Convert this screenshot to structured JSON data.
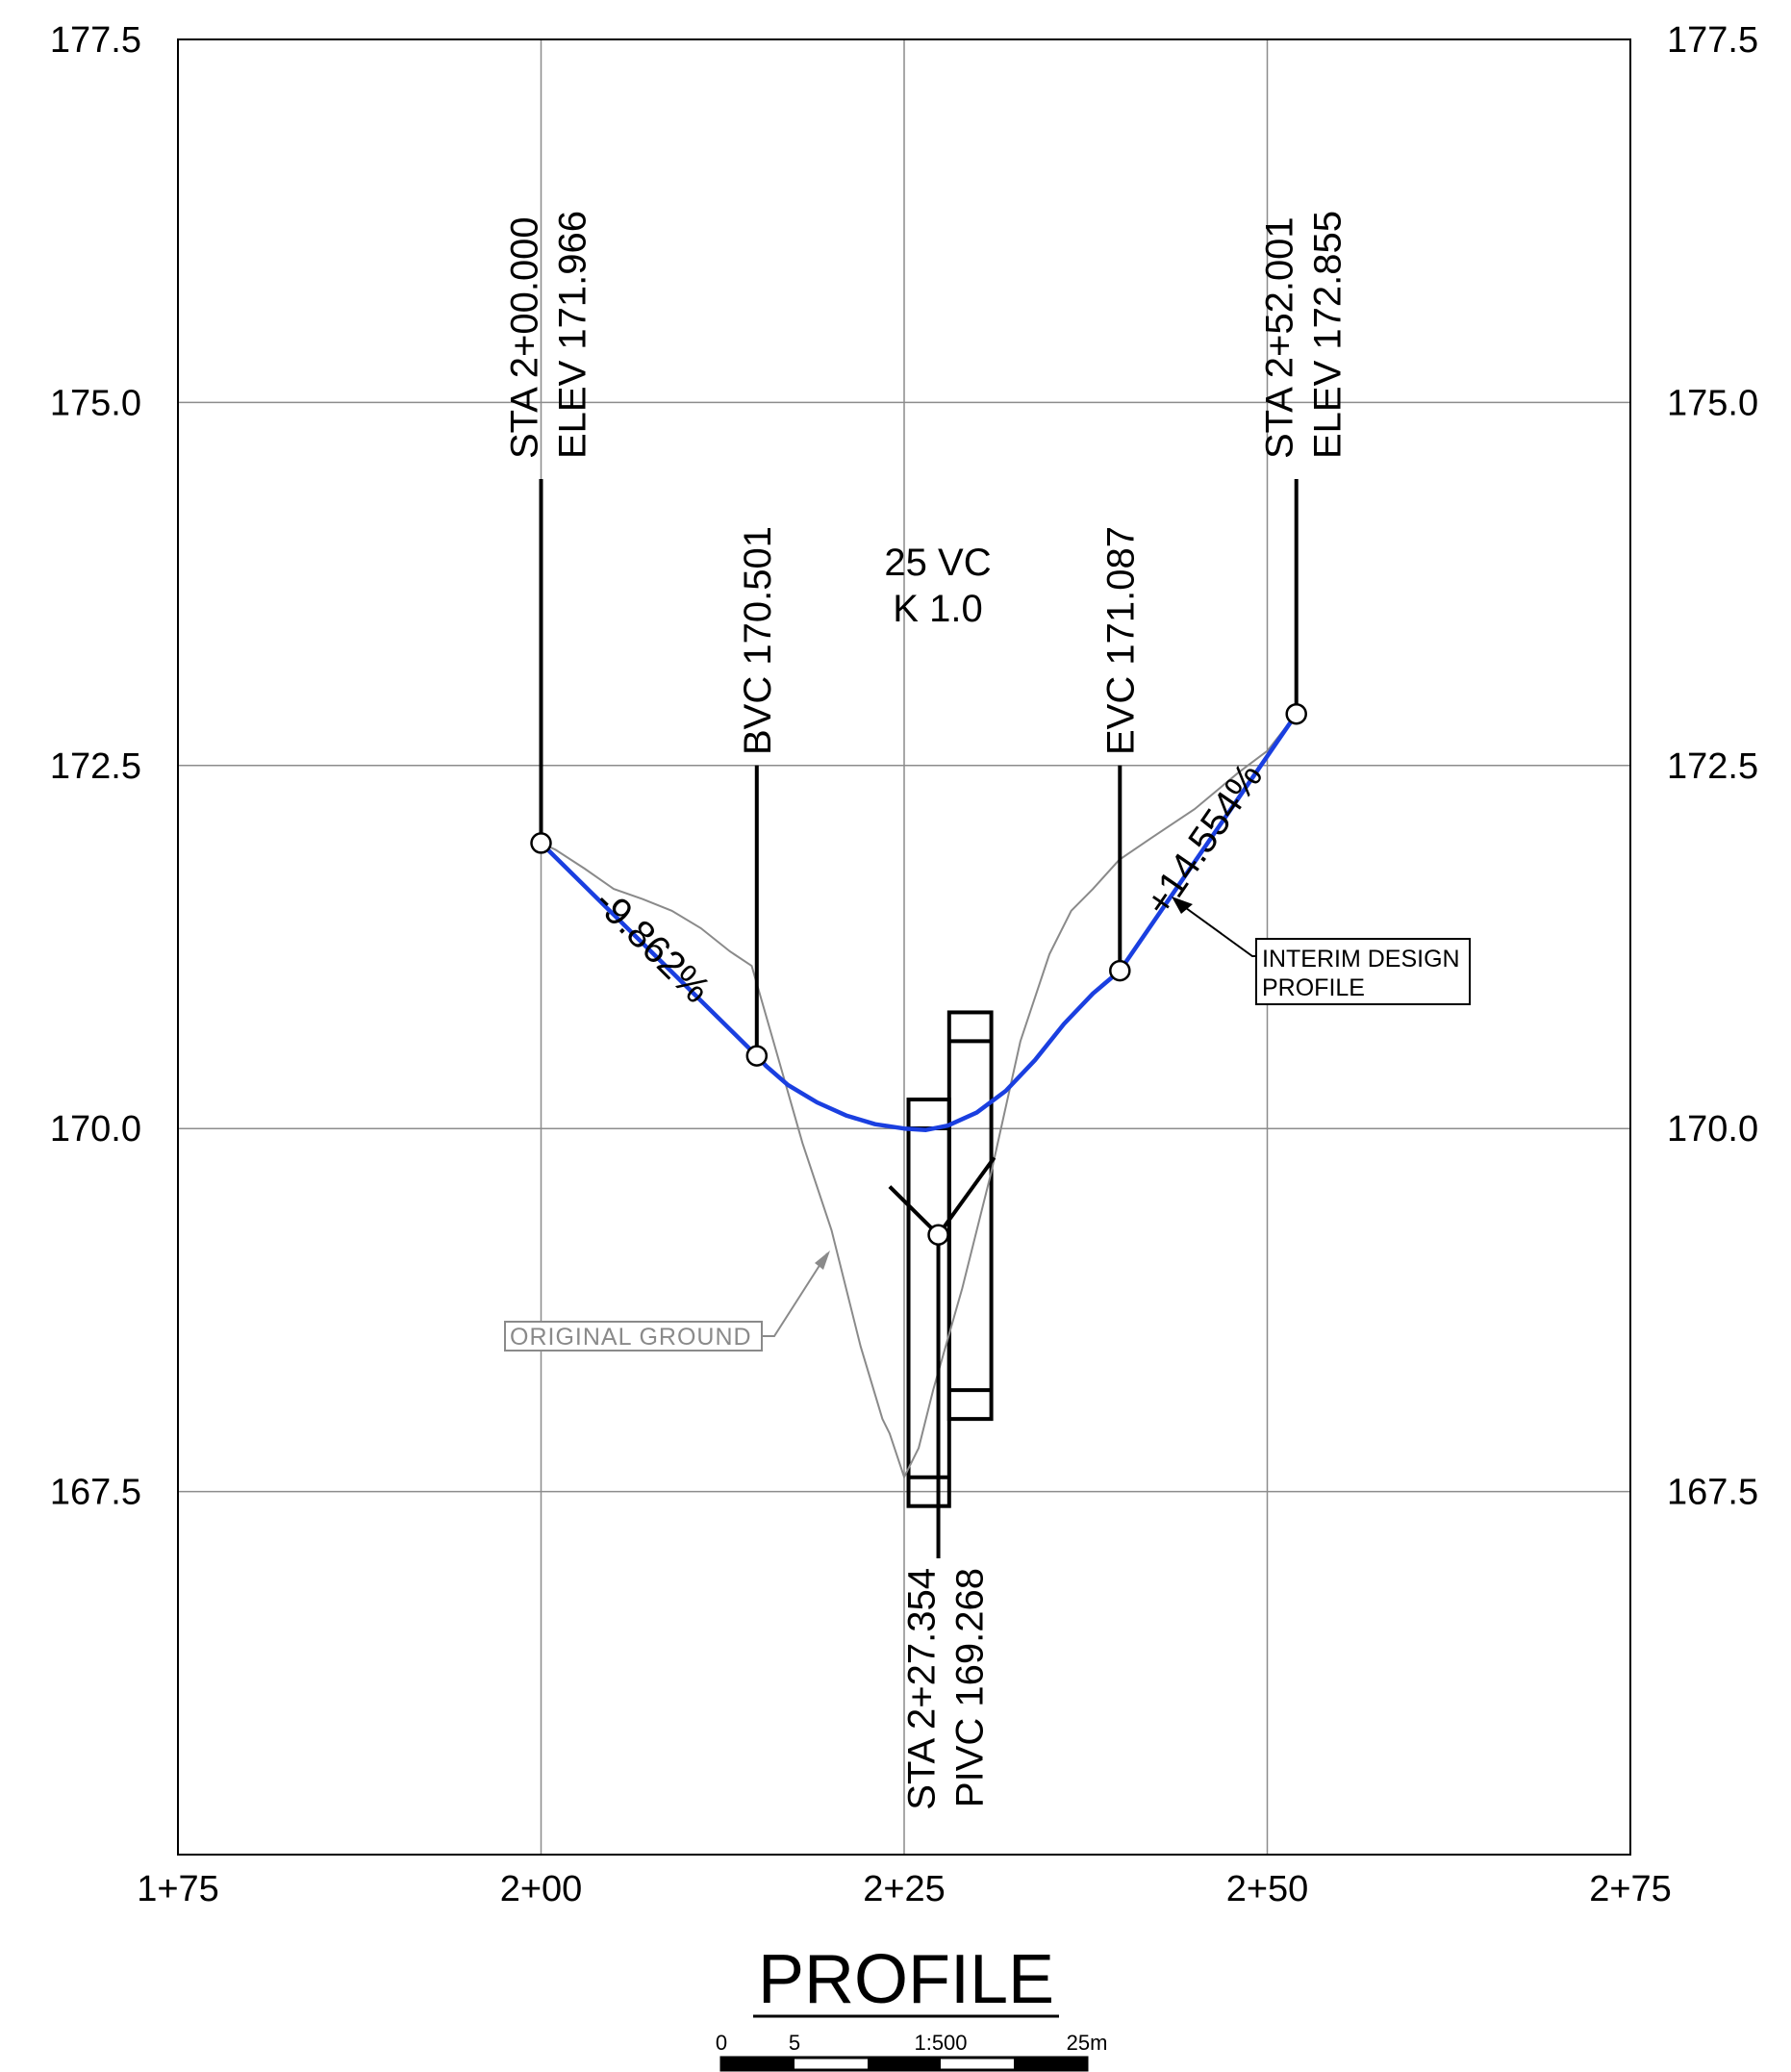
{
  "profile": {
    "title": "PROFILE",
    "x_tick_labels": [
      "1+75",
      "2+00",
      "2+25",
      "2+50",
      "2+75"
    ],
    "y_tick_labels": [
      "177.5",
      "175.0",
      "172.5",
      "170.0",
      "167.5"
    ],
    "pvi_start": {
      "sta": "STA 2+00.000",
      "elev": "ELEV 171.966"
    },
    "pvi_end": {
      "sta": "STA 2+52.001",
      "elev": "ELEV 172.855"
    },
    "bvc": "BVC 170.501",
    "evc": "EVC 171.087",
    "curve": {
      "vc": "25 VC",
      "k": "K 1.0"
    },
    "pivc": {
      "sta": "STA 2+27.354",
      "elev": "PIVC 169.268"
    },
    "grade_in": "-9.862%",
    "grade_out": "+14.554%",
    "design_label": [
      "INTERIM DESIGN",
      "PROFILE"
    ],
    "ground_label": "ORIGINAL  GROUND",
    "scale_bar": {
      "zero": "0",
      "five": "5",
      "ratio": "1:500",
      "end": "25m"
    },
    "colors": {
      "design": "#1a3fe0",
      "ground": "#8a8a8a",
      "grid": "#8c8c8c",
      "ink": "#000000"
    }
  },
  "chart_data": {
    "type": "line",
    "xlim": [
      175,
      275
    ],
    "ylim": [
      165,
      177.5
    ],
    "x_ticks": [
      175,
      200,
      225,
      250,
      275
    ],
    "y_ticks": [
      177.5,
      175.0,
      172.5,
      170.0,
      167.5
    ],
    "grid": true,
    "series": [
      {
        "name": "INTERIM DESIGN PROFILE",
        "points": [
          [
            200.0,
            171.966
          ],
          [
            214.854,
            170.501
          ],
          [
            215.5,
            170.43
          ],
          [
            217.0,
            170.3
          ],
          [
            219.0,
            170.18
          ],
          [
            221.0,
            170.09
          ],
          [
            223.0,
            170.03
          ],
          [
            225.0,
            170.0
          ],
          [
            226.5,
            169.99
          ],
          [
            228.0,
            170.02
          ],
          [
            230.0,
            170.11
          ],
          [
            232.0,
            170.26
          ],
          [
            234.0,
            170.47
          ],
          [
            236.0,
            170.72
          ],
          [
            238.0,
            170.93
          ],
          [
            239.854,
            171.087
          ],
          [
            252.001,
            172.855
          ]
        ]
      },
      {
        "name": "ORIGINAL  GROUND",
        "points": [
          [
            200.0,
            171.966
          ],
          [
            201.0,
            171.92
          ],
          [
            203.0,
            171.79
          ],
          [
            205.0,
            171.65
          ],
          [
            207.0,
            171.58
          ],
          [
            209.0,
            171.5
          ],
          [
            211.0,
            171.38
          ],
          [
            213.0,
            171.22
          ],
          [
            214.5,
            171.12
          ],
          [
            216.0,
            170.6
          ],
          [
            218.0,
            169.9
          ],
          [
            220.0,
            169.3
          ],
          [
            222.0,
            168.5
          ],
          [
            223.5,
            168.0
          ],
          [
            224.0,
            167.9
          ],
          [
            225.0,
            167.6
          ],
          [
            226.0,
            167.8
          ],
          [
            227.0,
            168.2
          ],
          [
            229.0,
            168.9
          ],
          [
            231.0,
            169.7
          ],
          [
            233.0,
            170.6
          ],
          [
            235.0,
            171.2
          ],
          [
            236.5,
            171.5
          ],
          [
            238.0,
            171.65
          ],
          [
            239.8,
            171.85
          ],
          [
            242.0,
            172.0
          ],
          [
            245.0,
            172.2
          ],
          [
            248.0,
            172.45
          ],
          [
            250.0,
            172.6
          ],
          [
            252.001,
            172.855
          ]
        ]
      }
    ],
    "points_marked": [
      {
        "name": "PVI start",
        "x": 200.0,
        "y": 171.966
      },
      {
        "name": "BVC",
        "x": 214.854,
        "y": 170.501
      },
      {
        "name": "PIVC",
        "x": 227.354,
        "y": 169.268
      },
      {
        "name": "EVC",
        "x": 239.854,
        "y": 171.087
      },
      {
        "name": "PVI end",
        "x": 252.001,
        "y": 172.855
      }
    ],
    "structures": [
      {
        "x": [
          225.3,
          228.1
        ],
        "y": [
          167.4,
          170.2
        ]
      },
      {
        "x": [
          228.1,
          231.0
        ],
        "y": [
          168.0,
          170.8
        ]
      }
    ]
  }
}
